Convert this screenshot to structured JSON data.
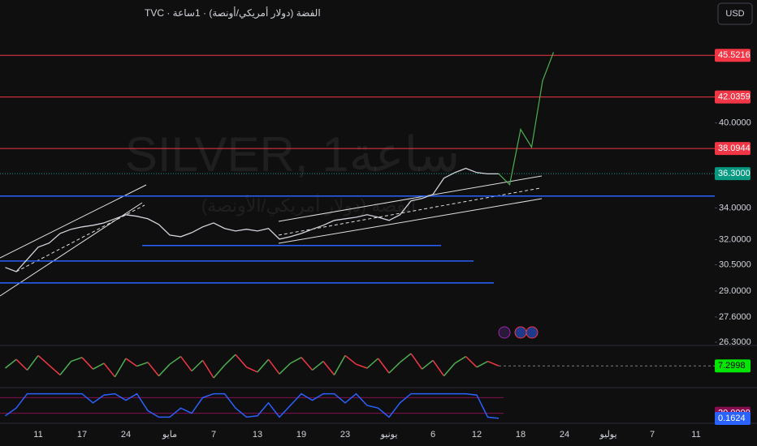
{
  "chart_data": {
    "type": "line",
    "title": "الفضة (دولار أمريكي/أونصة) · 1ساعة · TVC",
    "watermark": "SILVER, 1ساعة",
    "watermark_subtitle": "الفضة (دولار أمريكي/الأونصة)",
    "currency": "USD",
    "log_scale": true,
    "grid": false,
    "ylim": [
      26.3,
      50.6
    ],
    "yticks": [
      {
        "value": 40,
        "label": "40.0000"
      },
      {
        "value": 34,
        "label": "34.0000"
      },
      {
        "value": 32,
        "label": "32.0000"
      },
      {
        "value": 30.5,
        "label": "30.5000"
      },
      {
        "value": 29,
        "label": "29.0000"
      },
      {
        "value": 27.6,
        "label": "27.6000"
      },
      {
        "value": 26.3,
        "label": "26.3000"
      }
    ],
    "categories": [
      null,
      null,
      null,
      "11",
      null,
      null,
      null,
      "17",
      null,
      null,
      null,
      "24",
      null,
      null,
      null,
      "مايو",
      null,
      null,
      null,
      "7",
      null,
      null,
      null,
      "13",
      null,
      null,
      null,
      "19",
      null,
      null,
      null,
      "23",
      null,
      null,
      null,
      "يونيو",
      null,
      null,
      null,
      "6",
      null,
      null,
      null,
      "12",
      null,
      null,
      null,
      "18",
      null,
      null,
      null,
      "24",
      null,
      null,
      null,
      "يوليو",
      null,
      null,
      null,
      "7",
      null,
      null,
      null,
      "11",
      null
    ],
    "series": [
      {
        "color": "#d1d4dc",
        "values": [
          30.34,
          30.1,
          30.81,
          31.54,
          31.79,
          32.38,
          32.64,
          32.79,
          32.89,
          33.04,
          33.3,
          33.56,
          33.46,
          33.3,
          32.94,
          32.28,
          32.18,
          32.43,
          32.79,
          33.04,
          32.69,
          32.53,
          32.64,
          32.53,
          32.69,
          32.03,
          32.18,
          32.38,
          32.64,
          32.89,
          33.2,
          33.3,
          33.4,
          33.56,
          33.4,
          33.2,
          33.56,
          34.46,
          34.62,
          34.89,
          35.99,
          36.38,
          36.67,
          36.38,
          36.29,
          36.29,
          null,
          null,
          null,
          null,
          null,
          null,
          null,
          null,
          null,
          null,
          null,
          null,
          null,
          null,
          null,
          null,
          null,
          null,
          null
        ]
      },
      {
        "color": "#4caf50",
        "values": [
          null,
          null,
          null,
          null,
          null,
          null,
          null,
          null,
          null,
          null,
          null,
          null,
          null,
          null,
          null,
          null,
          null,
          null,
          null,
          null,
          null,
          null,
          null,
          null,
          null,
          null,
          null,
          null,
          null,
          null,
          null,
          null,
          null,
          null,
          null,
          null,
          null,
          null,
          null,
          null,
          null,
          null,
          null,
          null,
          null,
          36.29,
          35.55,
          39.51,
          38.18,
          43.36,
          45.79,
          null,
          null,
          null,
          null,
          null,
          null,
          null,
          null,
          null,
          null,
          null,
          null,
          null,
          null
        ]
      }
    ],
    "levels": [
      {
        "value": 45.5216,
        "color": "#f23645"
      },
      {
        "value": 42.0359,
        "color": "#f23645"
      },
      {
        "value": 38.0944,
        "color": "#f23645"
      }
    ],
    "current_price": {
      "value": 36.3,
      "label": "36.3000",
      "color": "#089981"
    },
    "support_lines": [
      {
        "value": 34.78,
        "color": "#2962ff"
      },
      {
        "value": 31.64,
        "color": "#2962ff"
      },
      {
        "value": 30.72,
        "color": "#2962ff"
      },
      {
        "value": 29.46,
        "color": "#2962ff"
      }
    ],
    "indicators": [
      {
        "ylim": [
          -10,
          25
        ],
        "up_color": "#4caf50",
        "down_color": "#f23645",
        "label_color": "#00e600",
        "values": [
          5,
          14,
          3,
          18,
          8,
          -2,
          12,
          16,
          4,
          10,
          -4,
          15,
          7,
          11,
          -3,
          9,
          17,
          2,
          13,
          -5,
          8,
          19,
          6,
          1,
          14,
          -1,
          10,
          16,
          3,
          12,
          -2,
          18,
          9,
          5,
          15,
          0,
          11,
          20,
          4,
          13,
          -3,
          10,
          17,
          6,
          12,
          7.2998
        ]
      },
      {
        "ylim": [
          0,
          100
        ],
        "color": "#2962ff",
        "level_color": "#880e4f",
        "levels": [
          80,
          {
            "value": 20,
            "label": "20.0000"
          }
        ],
        "values": [
          10,
          40,
          95,
          95,
          95,
          95,
          95,
          95,
          60,
          90,
          95,
          70,
          95,
          30,
          5,
          5,
          40,
          20,
          80,
          95,
          95,
          40,
          5,
          10,
          60,
          5,
          50,
          95,
          70,
          95,
          95,
          60,
          95,
          50,
          40,
          5,
          60,
          95,
          95,
          95,
          95,
          95,
          95,
          90,
          5,
          0.1624
        ]
      }
    ]
  }
}
